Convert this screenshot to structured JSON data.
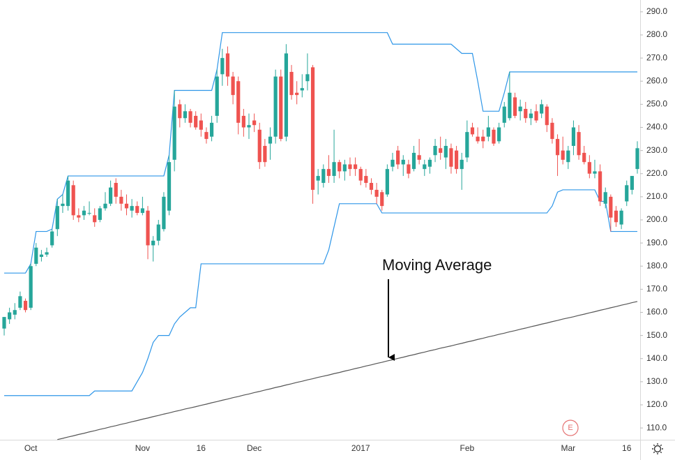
{
  "chart_data": {
    "type": "candlestick",
    "categories": [
      null,
      null,
      null,
      null,
      null,
      "Oct",
      null,
      null,
      null,
      null,
      null,
      null,
      null,
      null,
      null,
      null,
      null,
      null,
      null,
      null,
      null,
      null,
      null,
      null,
      null,
      null,
      "Nov",
      null,
      null,
      null,
      null,
      null,
      null,
      null,
      null,
      null,
      null,
      "16",
      null,
      null,
      null,
      null,
      null,
      null,
      null,
      null,
      null,
      "Dec",
      null,
      null,
      null,
      null,
      null,
      null,
      null,
      null,
      null,
      null,
      null,
      null,
      null,
      null,
      null,
      null,
      null,
      null,
      null,
      "2017",
      null,
      null,
      null,
      null,
      null,
      null,
      null,
      null,
      null,
      null,
      null,
      null,
      null,
      null,
      null,
      null,
      null,
      null,
      null,
      "Feb",
      null,
      null,
      null,
      null,
      null,
      null,
      null,
      null,
      null,
      null,
      null,
      null,
      null,
      null,
      null,
      null,
      null,
      null,
      "Mar",
      null,
      null,
      null,
      null,
      null,
      null,
      null,
      null,
      null,
      null,
      "16",
      null,
      null
    ],
    "open": [
      153,
      157,
      159,
      162,
      165,
      162,
      181,
      184,
      185,
      189,
      196,
      206,
      206,
      215,
      202,
      202,
      203,
      202,
      200,
      205,
      207,
      216,
      210,
      207,
      204,
      206,
      203,
      204,
      189,
      191,
      196,
      204,
      226,
      250,
      244,
      247,
      245,
      243,
      238,
      236,
      245,
      263,
      272,
      262,
      260,
      245,
      240,
      243,
      239,
      232,
      233,
      236,
      262,
      236,
      264,
      255,
      256,
      260,
      266,
      217,
      216,
      222,
      219,
      225,
      221,
      224,
      224,
      222,
      219,
      216,
      213,
      212,
      211,
      223,
      230,
      224,
      224,
      222,
      228,
      222,
      223,
      228,
      231,
      227,
      231,
      230,
      222,
      227,
      240,
      236,
      236,
      236,
      239,
      234,
      242,
      244,
      253,
      247,
      248,
      244,
      247,
      246,
      249,
      242,
      235,
      230,
      225,
      232,
      238,
      229,
      225,
      220,
      221,
      207,
      210,
      204,
      198,
      208,
      213,
      222
    ],
    "high": [
      158,
      162,
      164,
      169,
      166,
      181,
      190,
      187,
      188,
      196,
      209,
      211,
      219,
      217,
      205,
      206,
      208,
      205,
      206,
      212,
      217,
      218,
      213,
      211,
      209,
      208,
      210,
      206,
      193,
      200,
      212,
      228,
      256,
      252,
      250,
      248,
      247,
      246,
      240,
      245,
      265,
      274,
      275,
      264,
      262,
      248,
      246,
      246,
      242,
      235,
      240,
      265,
      265,
      276,
      267,
      260,
      263,
      272,
      267,
      222,
      224,
      228,
      239,
      226,
      226,
      227,
      227,
      223,
      222,
      218,
      216,
      213,
      224,
      229,
      232,
      228,
      226,
      232,
      235,
      226,
      227,
      235,
      236,
      235,
      233,
      232,
      229,
      243,
      242,
      240,
      239,
      245,
      240,
      242,
      251,
      264,
      255,
      252,
      251,
      248,
      250,
      252,
      250,
      244,
      237,
      236,
      232,
      243,
      241,
      232,
      228,
      226,
      224,
      214,
      211,
      206,
      205,
      217,
      219,
      234
    ],
    "low": [
      150,
      155,
      157,
      161,
      160,
      161,
      180,
      182,
      184,
      188,
      193,
      203,
      204,
      200,
      199,
      200,
      202,
      197,
      199,
      204,
      206,
      207,
      204,
      202,
      201,
      202,
      202,
      183,
      182,
      189,
      195,
      202,
      221,
      240,
      242,
      240,
      239,
      236,
      233,
      234,
      242,
      258,
      258,
      250,
      237,
      236,
      235,
      238,
      222,
      223,
      226,
      233,
      234,
      234,
      252,
      250,
      253,
      256,
      207,
      211,
      214,
      216,
      216,
      218,
      217,
      219,
      219,
      215,
      214,
      211,
      207,
      204,
      210,
      221,
      222,
      219,
      218,
      221,
      224,
      219,
      220,
      225,
      226,
      222,
      220,
      220,
      213,
      225,
      236,
      233,
      231,
      234,
      232,
      233,
      240,
      243,
      244,
      243,
      242,
      241,
      242,
      244,
      238,
      233,
      219,
      224,
      222,
      228,
      226,
      224,
      218,
      218,
      206,
      205,
      195,
      197,
      196,
      206,
      211,
      220
    ],
    "close": [
      158,
      160,
      161,
      167,
      161,
      180,
      188,
      185,
      186,
      195,
      206,
      207,
      217,
      202,
      201,
      204,
      203,
      199,
      205,
      207,
      214,
      210,
      207,
      205,
      206,
      203,
      205,
      189,
      191,
      198,
      210,
      225,
      249,
      244,
      247,
      242,
      240,
      239,
      235,
      242,
      262,
      270,
      262,
      254,
      242,
      240,
      241,
      241,
      225,
      225,
      236,
      262,
      235,
      272,
      254,
      254,
      257,
      263,
      213,
      219,
      222,
      219,
      225,
      221,
      224,
      222,
      222,
      217,
      216,
      213,
      210,
      206,
      222,
      226,
      224,
      226,
      220,
      229,
      226,
      224,
      226,
      232,
      229,
      232,
      223,
      222,
      226,
      238,
      237,
      234,
      234,
      240,
      233,
      240,
      249,
      255,
      245,
      249,
      244,
      246,
      243,
      250,
      241,
      235,
      228,
      226,
      230,
      240,
      228,
      225,
      220,
      221,
      208,
      212,
      201,
      199,
      204,
      215,
      219,
      231
    ],
    "up_color": "#26a69a",
    "down_color": "#ef5350",
    "lines": [
      {
        "color": "#2e96e8",
        "values": [
          177,
          177,
          177,
          177,
          177,
          181,
          195,
          195,
          195,
          196,
          209,
          211,
          219,
          219,
          219,
          219,
          219,
          219,
          219,
          219,
          219,
          219,
          219,
          219,
          219,
          219,
          219,
          219,
          219,
          219,
          219,
          228,
          256,
          256,
          256,
          256,
          256,
          256,
          256,
          256,
          265,
          281,
          281,
          281,
          281,
          281,
          281,
          281,
          281,
          281,
          281,
          281,
          281,
          281,
          281,
          281,
          281,
          281,
          281,
          281,
          281,
          281,
          281,
          281,
          281,
          281,
          281,
          281,
          281,
          281,
          281,
          281,
          281,
          276,
          276,
          276,
          276,
          276,
          276,
          276,
          276,
          276,
          276,
          276,
          276,
          274,
          272,
          272,
          272,
          260,
          247,
          247,
          247,
          247,
          255,
          264,
          264,
          264,
          264,
          264,
          264,
          264,
          264,
          264,
          264,
          264,
          264,
          264,
          264,
          264,
          264,
          264,
          264,
          264,
          264,
          264,
          264,
          264,
          264,
          264
        ]
      },
      {
        "color": "#2e96e8",
        "values": [
          124,
          124,
          124,
          124,
          124,
          124,
          124,
          124,
          124,
          124,
          124,
          124,
          124,
          124,
          124,
          124,
          124,
          126,
          126,
          126,
          126,
          126,
          126,
          126,
          126,
          130,
          134,
          140,
          147,
          150,
          150,
          150,
          155,
          158,
          160,
          162,
          162,
          181,
          181,
          181,
          181,
          181,
          181,
          181,
          181,
          181,
          181,
          181,
          181,
          181,
          181,
          181,
          181,
          181,
          181,
          181,
          181,
          181,
          181,
          181,
          181,
          187,
          197,
          207,
          207,
          207,
          207,
          207,
          207,
          207,
          207,
          203,
          203,
          203,
          203,
          203,
          203,
          203,
          203,
          203,
          203,
          203,
          203,
          203,
          203,
          203,
          203,
          203,
          203,
          203,
          203,
          203,
          203,
          203,
          203,
          203,
          203,
          203,
          203,
          203,
          203,
          203,
          203,
          206,
          212,
          213,
          213,
          213,
          213,
          213,
          213,
          213,
          208,
          208,
          195,
          195,
          195,
          195,
          195,
          195
        ]
      },
      {
        "color": "#555555",
        "values": [
          null,
          null,
          null,
          null,
          null,
          null,
          null,
          null,
          null,
          null,
          105.0,
          105.5,
          106.1,
          106.6,
          107.2,
          107.7,
          108.3,
          108.8,
          109.4,
          109.9,
          110.5,
          111.0,
          111.6,
          112.1,
          112.7,
          113.2,
          113.8,
          114.3,
          114.9,
          115.4,
          116.0,
          116.5,
          117.1,
          117.6,
          118.2,
          118.7,
          119.2,
          119.8,
          120.3,
          120.9,
          121.4,
          122.0,
          122.5,
          123.1,
          123.6,
          124.2,
          124.7,
          125.3,
          125.8,
          126.4,
          126.9,
          127.5,
          128.0,
          128.6,
          129.1,
          129.7,
          130.2,
          130.8,
          131.3,
          131.9,
          132.4,
          132.9,
          133.5,
          134.0,
          134.6,
          135.1,
          135.7,
          136.2,
          136.8,
          137.3,
          137.9,
          138.4,
          139.0,
          139.5,
          140.1,
          140.6,
          141.2,
          141.7,
          142.3,
          142.8,
          143.4,
          143.9,
          144.5,
          145.0,
          145.5,
          146.1,
          146.6,
          147.2,
          147.7,
          148.3,
          148.8,
          149.4,
          149.9,
          150.5,
          151.0,
          151.6,
          152.1,
          152.7,
          153.2,
          153.8,
          154.3,
          154.9,
          155.4,
          156.0,
          156.5,
          157.1,
          157.6,
          158.1,
          158.7,
          159.2,
          159.8,
          160.3,
          160.9,
          161.4,
          162.0,
          162.5,
          163.1,
          163.6,
          164.2,
          164.7
        ]
      }
    ],
    "annotation": "Moving Average",
    "earnings_marker": "E",
    "ylim": [
      104.9,
      295.1
    ],
    "yticks": [
      {
        "value": 110,
        "label": "110.0"
      },
      {
        "value": 120,
        "label": "120.0"
      },
      {
        "value": 130,
        "label": "130.0"
      },
      {
        "value": 140,
        "label": "140.0"
      },
      {
        "value": 150,
        "label": "150.0"
      },
      {
        "value": 160,
        "label": "160.0"
      },
      {
        "value": 170,
        "label": "170.0"
      },
      {
        "value": 180,
        "label": "180.0"
      },
      {
        "value": 190,
        "label": "190.0"
      },
      {
        "value": 200,
        "label": "200.0"
      },
      {
        "value": 210,
        "label": "210.0"
      },
      {
        "value": 220,
        "label": "220.0"
      },
      {
        "value": 230,
        "label": "230.0"
      },
      {
        "value": 240,
        "label": "240.0"
      },
      {
        "value": 250,
        "label": "250.0"
      },
      {
        "value": 260,
        "label": "260.0"
      },
      {
        "value": 270,
        "label": "270.0"
      },
      {
        "value": 280,
        "label": "280.0"
      },
      {
        "value": 290,
        "label": "290.0"
      }
    ]
  }
}
